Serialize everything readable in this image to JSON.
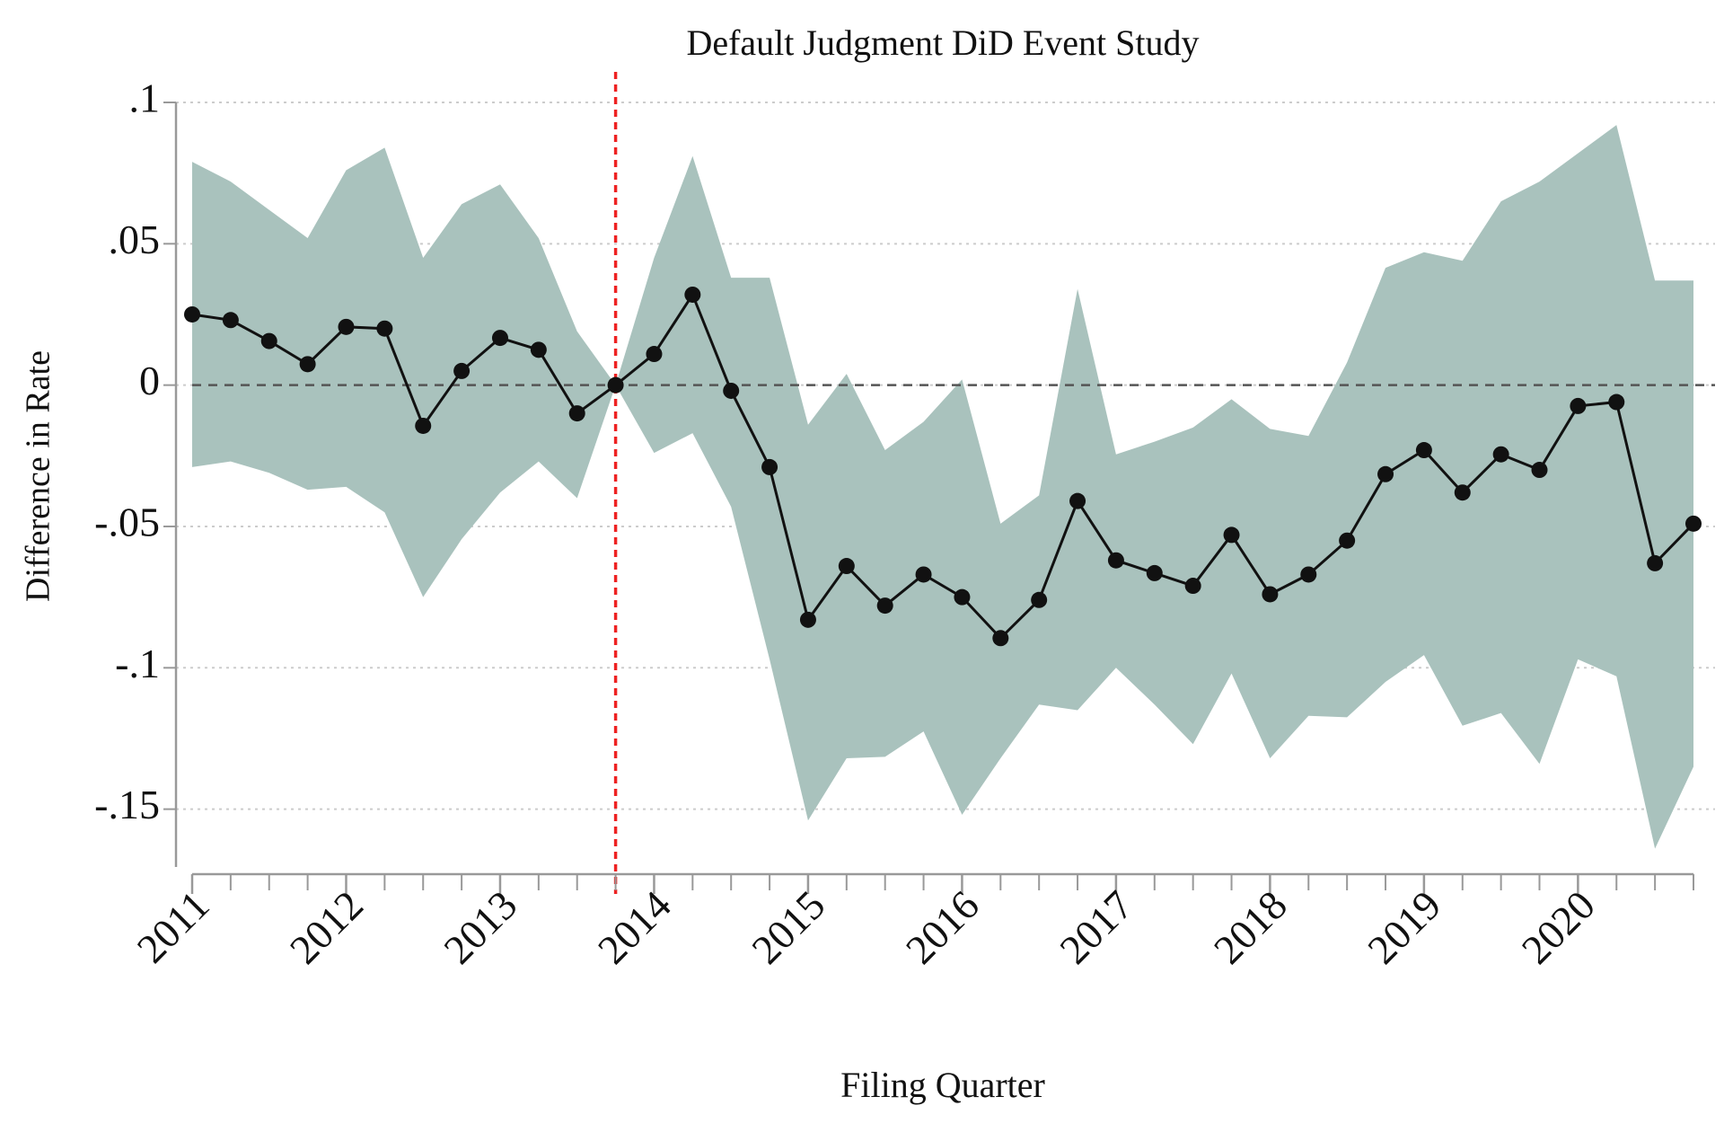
{
  "chart_data": {
    "type": "line",
    "title": "Default Judgment DiD Event Study",
    "x_label": "Filing Quarter",
    "y_label": "Difference in Rate",
    "x": [
      2011,
      2011.25,
      2011.5,
      2011.75,
      2012,
      2012.25,
      2012.5,
      2012.75,
      2013,
      2013.25,
      2013.5,
      2013.75,
      2014,
      2014.25,
      2014.5,
      2014.75,
      2015,
      2015.25,
      2015.5,
      2015.75,
      2016,
      2016.25,
      2016.5,
      2016.75,
      2017,
      2017.25,
      2017.5,
      2017.75,
      2018,
      2018.25,
      2018.5,
      2018.75,
      2019,
      2019.25,
      2019.5,
      2019.75,
      2020,
      2020.25,
      2020.5,
      2020.75
    ],
    "series": [
      {
        "color": "#111111",
        "values": [
          0.025,
          0.023,
          0.0156,
          0.0074,
          0.0206,
          0.02,
          -0.0144,
          0.005,
          0.0167,
          0.0125,
          -0.01,
          0,
          0.011,
          0.032,
          -0.002,
          -0.029,
          -0.083,
          -0.064,
          -0.078,
          -0.067,
          -0.075,
          -0.0895,
          -0.076,
          -0.041,
          -0.062,
          -0.0665,
          -0.071,
          -0.053,
          -0.074,
          -0.067,
          -0.055,
          -0.0315,
          -0.023,
          -0.038,
          -0.0245,
          -0.03,
          -0.0074,
          -0.006,
          -0.063,
          -0.049
        ]
      }
    ],
    "band": {
      "color": "#a9c2bd",
      "upper": [
        0.079,
        0.072,
        0.062,
        0.052,
        0.076,
        0.084,
        0.045,
        0.064,
        0.071,
        0.052,
        0.019,
        0,
        0.045,
        0.081,
        0.038,
        0.038,
        -0.014,
        0.004,
        -0.023,
        -0.013,
        0.002,
        -0.049,
        -0.039,
        0.034,
        -0.0245,
        -0.02,
        -0.015,
        -0.005,
        -0.0155,
        -0.018,
        0.008,
        0.0415,
        0.047,
        0.044,
        0.065,
        0.072,
        0.082,
        0.092,
        0.037,
        0.037
      ],
      "lower": [
        -0.029,
        -0.027,
        -0.031,
        -0.037,
        -0.036,
        -0.045,
        -0.075,
        -0.0545,
        -0.038,
        -0.027,
        -0.04,
        0,
        -0.024,
        -0.017,
        -0.043,
        -0.097,
        -0.154,
        -0.132,
        -0.1315,
        -0.1225,
        -0.152,
        -0.132,
        -0.113,
        -0.115,
        -0.1,
        -0.113,
        -0.127,
        -0.102,
        -0.132,
        -0.117,
        -0.1175,
        -0.105,
        -0.0955,
        -0.1205,
        -0.116,
        -0.134,
        -0.097,
        -0.103,
        -0.164,
        -0.135
      ]
    },
    "vline": {
      "value": 2013.75,
      "color": "#ee2222"
    },
    "hline": {
      "value": 0,
      "color": "#555555"
    },
    "xlim": [
      2011,
      2020.75
    ],
    "xticks": [
      2011,
      2012,
      2013,
      2014,
      2015,
      2016,
      2017,
      2018,
      2019,
      2020
    ],
    "ylim": [
      -0.173,
      0.1
    ],
    "yticks": [
      {
        "value": 0.1,
        "label": ".1"
      },
      {
        "value": 0.05,
        "label": ".05"
      },
      0,
      {
        "value": -0.05,
        "label": "-.05"
      },
      {
        "value": -0.1,
        "label": "-.1"
      },
      {
        "value": -0.15,
        "label": "-.15"
      }
    ],
    "grid": true
  }
}
